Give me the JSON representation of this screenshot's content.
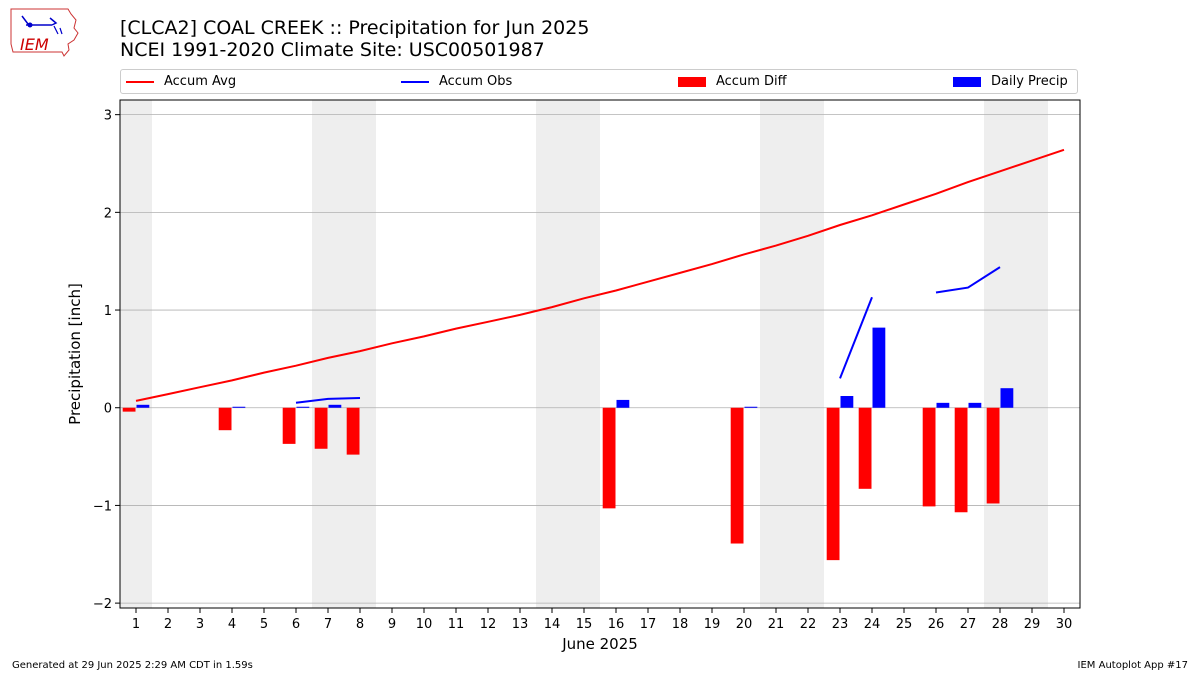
{
  "header": {
    "title_line1": "[CLCA2] COAL CREEK :: Precipitation for Jun 2025",
    "title_line2": "NCEI 1991-2020 Climate Site: USC00501987",
    "logo_text": "IEM"
  },
  "footer": {
    "generated": "Generated at 29 Jun 2025 2:29 AM CDT in 1.59s",
    "app": "IEM Autoplot App #17"
  },
  "colors": {
    "avg": "#ff0000",
    "obs": "#0000ff",
    "diff": "#ff0000",
    "daily": "#0000ff",
    "weekend_shade": "#eeeeee",
    "grid": "#b0b0b0"
  },
  "chart_data": {
    "type": "bar",
    "xlabel": "June 2025",
    "ylabel": "Precipitation [inch]",
    "ylim": [
      -2.05,
      3.15
    ],
    "xlim": [
      0.5,
      30.5
    ],
    "yticks": [
      -2,
      -1,
      0,
      1,
      2,
      3
    ],
    "ytick_labels": [
      "−2",
      "−1",
      "0",
      "1",
      "2",
      "3"
    ],
    "xticks": [
      1,
      2,
      3,
      4,
      5,
      6,
      7,
      8,
      9,
      10,
      11,
      12,
      13,
      14,
      15,
      16,
      17,
      18,
      19,
      20,
      21,
      22,
      23,
      24,
      25,
      26,
      27,
      28,
      29,
      30
    ],
    "grid": "horizontal",
    "legend": {
      "position": "top",
      "entries": [
        "Accum Avg",
        "Accum Obs",
        "Accum Diff",
        "Daily Precip"
      ]
    },
    "shaded_spans": [
      [
        0.5,
        1.5
      ],
      [
        6.5,
        8.5
      ],
      [
        13.5,
        15.5
      ],
      [
        20.5,
        22.5
      ],
      [
        27.5,
        29.5
      ]
    ],
    "accum_avg": {
      "days": [
        1,
        2,
        3,
        4,
        5,
        6,
        7,
        8,
        9,
        10,
        11,
        12,
        13,
        14,
        15,
        16,
        17,
        18,
        19,
        20,
        21,
        22,
        23,
        24,
        25,
        26,
        27,
        28,
        29,
        30
      ],
      "values": [
        0.07,
        0.14,
        0.21,
        0.28,
        0.36,
        0.43,
        0.51,
        0.58,
        0.66,
        0.73,
        0.81,
        0.88,
        0.95,
        1.03,
        1.12,
        1.2,
        1.29,
        1.38,
        1.47,
        1.57,
        1.66,
        1.76,
        1.87,
        1.97,
        2.08,
        2.19,
        2.31,
        2.42,
        2.53,
        2.64
      ]
    },
    "accum_obs": {
      "segments": [
        {
          "days": [
            6,
            7,
            8
          ],
          "values": [
            0.05,
            0.09,
            0.1
          ]
        },
        {
          "days": [
            23,
            24
          ],
          "values": [
            0.3,
            1.13
          ]
        },
        {
          "days": [
            26,
            27,
            28
          ],
          "values": [
            1.18,
            1.23,
            1.44
          ]
        }
      ]
    },
    "accum_diff": {
      "days": [
        1,
        4,
        6,
        7,
        8,
        16,
        20,
        23,
        24,
        26,
        27,
        28
      ],
      "values": [
        -0.04,
        -0.23,
        -0.37,
        -0.42,
        -0.48,
        -1.03,
        -1.39,
        -1.56,
        -0.83,
        -1.01,
        -1.07,
        -0.98
      ]
    },
    "daily_precip": {
      "days": [
        1,
        4,
        6,
        7,
        16,
        20,
        23,
        24,
        26,
        27,
        28
      ],
      "values": [
        0.03,
        0.01,
        0.01,
        0.03,
        0.08,
        0.01,
        0.12,
        0.82,
        0.05,
        0.05,
        0.2
      ]
    }
  }
}
